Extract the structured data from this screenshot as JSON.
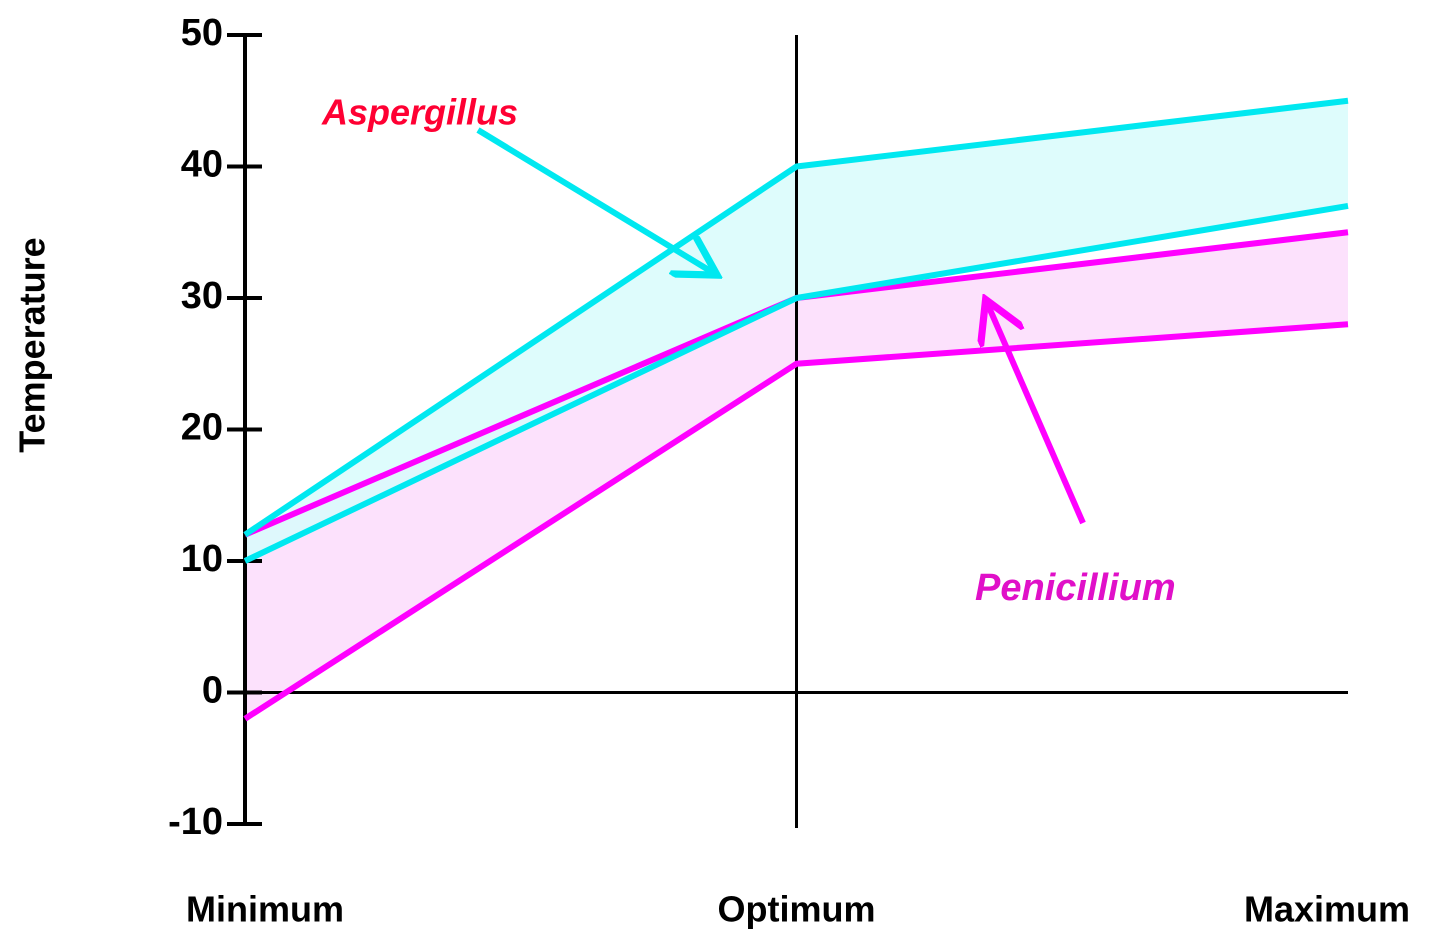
{
  "chart_data": {
    "type": "range_band",
    "y_label": "Temperature",
    "categories": [
      "Minimum",
      "Optimum",
      "Maximum"
    ],
    "ylim": [
      -10,
      50
    ],
    "yticks": [
      -10,
      0,
      10,
      20,
      30,
      40,
      50
    ],
    "series": [
      {
        "name": "Penicillium",
        "color": "#ff00ff",
        "fill": "#fcdcfc",
        "upper": [
          12,
          30,
          35
        ],
        "lower": [
          -2,
          25,
          28
        ]
      },
      {
        "name": "Aspergillus",
        "color": "#00e8f0",
        "fill": "#d8fcfc",
        "upper": [
          12,
          40,
          45
        ],
        "lower": [
          10,
          30,
          37
        ]
      }
    ],
    "annotations": [
      {
        "text": "Aspergillus",
        "color": "#ff0033"
      },
      {
        "text": "Penicillium",
        "color": "#e010c8"
      }
    ]
  }
}
